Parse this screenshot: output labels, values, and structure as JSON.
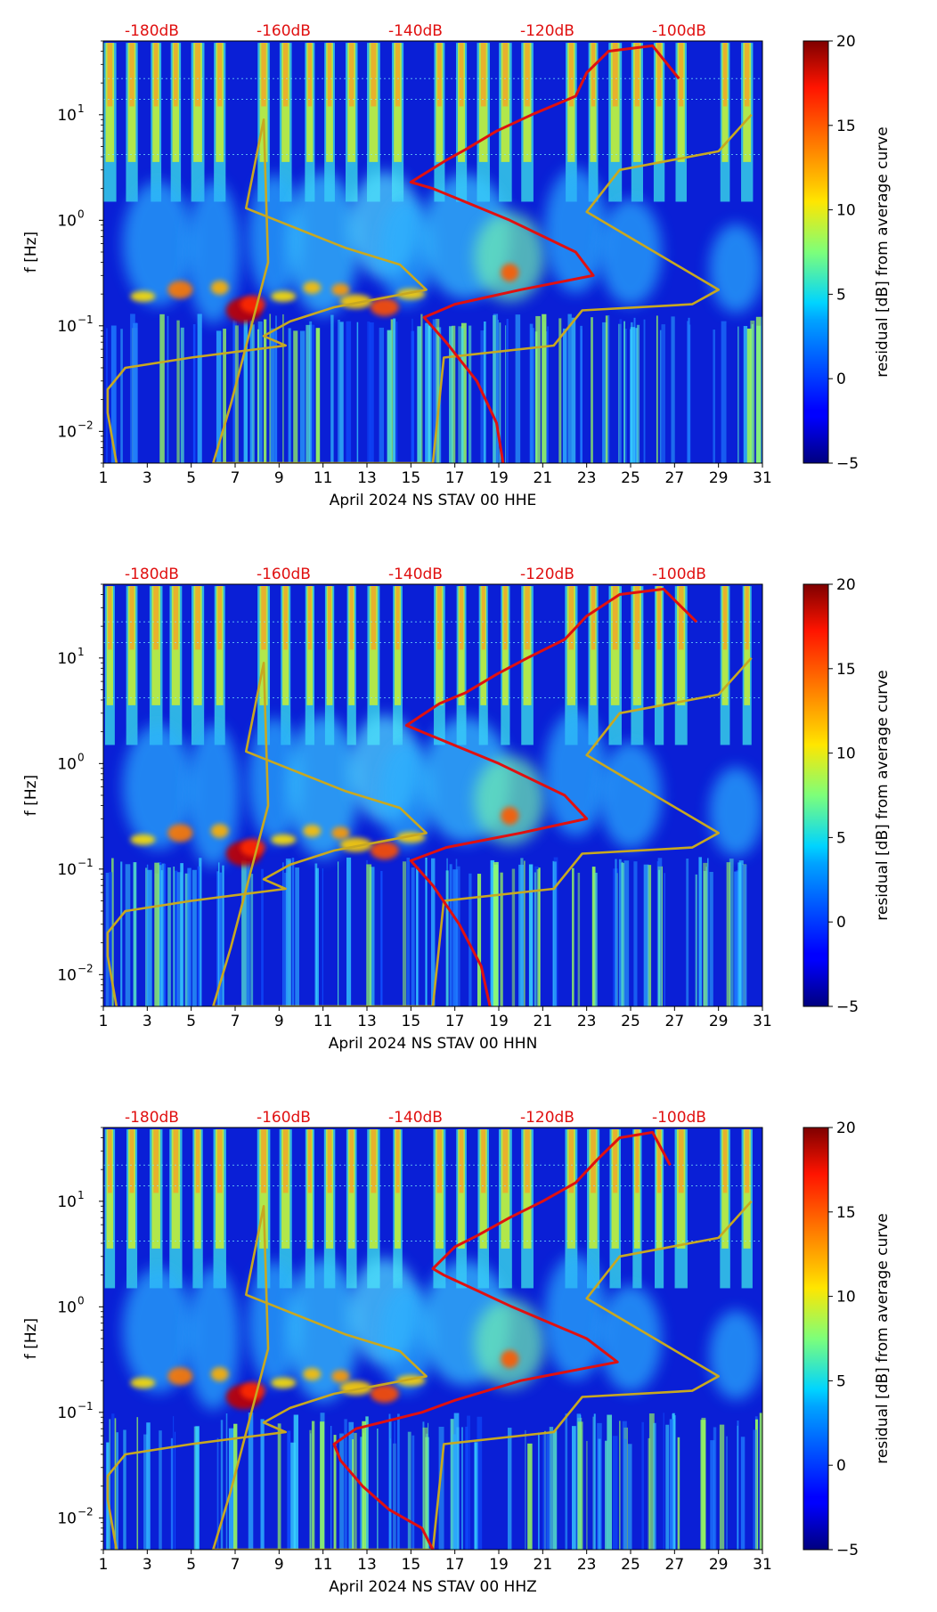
{
  "chart_data": [
    {
      "type": "heatmap",
      "channel": "HHE",
      "xlabel": "April 2024 NS STAV 00 HHE",
      "ylabel": "f [Hz]",
      "x_ticks": [
        "1",
        "3",
        "5",
        "7",
        "9",
        "11",
        "13",
        "15",
        "17",
        "19",
        "21",
        "23",
        "25",
        "27",
        "29",
        "31"
      ],
      "x_range": [
        1,
        31
      ],
      "y_range_hz": [
        0.005,
        50
      ],
      "y_ticks": [
        {
          "base": "10",
          "exp": "1",
          "value": 10
        },
        {
          "base": "10",
          "exp": "0",
          "value": 1
        },
        {
          "base": "10",
          "exp": "−1",
          "value": 0.1
        },
        {
          "base": "10",
          "exp": "−2",
          "value": 0.01
        }
      ],
      "top_db_labels": [
        "-180dB",
        "-160dB",
        "-140dB",
        "-120dB",
        "-100dB"
      ],
      "colorbar": {
        "label": "residual [dB] from average curve",
        "min": -5,
        "max": 20,
        "ticks": [
          "−5",
          "0",
          "5",
          "10",
          "15",
          "20"
        ]
      },
      "red_curve": [
        [
          19.2,
          0.005
        ],
        [
          18.9,
          0.012
        ],
        [
          18.0,
          0.03
        ],
        [
          16.6,
          0.07
        ],
        [
          15.6,
          0.12
        ],
        [
          17.0,
          0.16
        ],
        [
          20.0,
          0.22
        ],
        [
          23.3,
          0.3
        ],
        [
          22.5,
          0.5
        ],
        [
          19.5,
          1.0
        ],
        [
          16.0,
          2.0
        ],
        [
          15.0,
          2.3
        ],
        [
          16.6,
          3.7
        ],
        [
          17.5,
          4.7
        ],
        [
          18.9,
          7.0
        ],
        [
          20.5,
          10
        ],
        [
          22.5,
          15
        ],
        [
          23.0,
          25
        ],
        [
          24.0,
          40
        ],
        [
          26.0,
          45
        ],
        [
          27.2,
          22
        ]
      ],
      "gold_curve": [
        [
          1.6,
          0.005
        ],
        [
          1.2,
          0.015
        ],
        [
          1.2,
          0.025
        ],
        [
          2.0,
          0.04
        ],
        [
          5.0,
          0.05
        ],
        [
          9.3,
          0.065
        ],
        [
          8.3,
          0.08
        ],
        [
          9.5,
          0.11
        ],
        [
          11.5,
          0.15
        ],
        [
          15.7,
          0.22
        ],
        [
          14.5,
          0.38
        ],
        [
          12.0,
          0.55
        ],
        [
          7.5,
          1.3
        ],
        [
          8.3,
          9.0
        ],
        [
          8.5,
          0.4
        ],
        [
          6.8,
          0.018
        ],
        [
          6.0,
          0.005
        ],
        [
          16.0,
          0.005
        ],
        [
          16.5,
          0.05
        ],
        [
          21.5,
          0.065
        ],
        [
          22.8,
          0.14
        ],
        [
          27.8,
          0.16
        ],
        [
          29.0,
          0.22
        ],
        [
          23.0,
          1.2
        ],
        [
          24.5,
          3.0
        ],
        [
          29.0,
          4.5
        ],
        [
          30.5,
          10.0
        ]
      ]
    },
    {
      "type": "heatmap",
      "channel": "HHN",
      "xlabel": "April 2024 NS STAV 00 HHN",
      "ylabel": "f [Hz]",
      "x_ticks": [
        "1",
        "3",
        "5",
        "7",
        "9",
        "11",
        "13",
        "15",
        "17",
        "19",
        "21",
        "23",
        "25",
        "27",
        "29",
        "31"
      ],
      "x_range": [
        1,
        31
      ],
      "y_range_hz": [
        0.005,
        50
      ],
      "y_ticks": [
        {
          "base": "10",
          "exp": "1",
          "value": 10
        },
        {
          "base": "10",
          "exp": "0",
          "value": 1
        },
        {
          "base": "10",
          "exp": "−1",
          "value": 0.1
        },
        {
          "base": "10",
          "exp": "−2",
          "value": 0.01
        }
      ],
      "top_db_labels": [
        "-180dB",
        "-160dB",
        "-140dB",
        "-120dB",
        "-100dB"
      ],
      "colorbar": {
        "label": "residual [dB] from average curve",
        "min": -5,
        "max": 20,
        "ticks": [
          "−5",
          "0",
          "5",
          "10",
          "15",
          "20"
        ]
      },
      "red_curve": [
        [
          18.6,
          0.005
        ],
        [
          18.2,
          0.012
        ],
        [
          17.2,
          0.03
        ],
        [
          16.0,
          0.07
        ],
        [
          15.0,
          0.12
        ],
        [
          16.6,
          0.16
        ],
        [
          20.0,
          0.22
        ],
        [
          23.0,
          0.3
        ],
        [
          22.0,
          0.5
        ],
        [
          19.0,
          1.0
        ],
        [
          15.5,
          2.0
        ],
        [
          14.8,
          2.3
        ],
        [
          16.3,
          3.7
        ],
        [
          17.5,
          4.7
        ],
        [
          18.9,
          7.0
        ],
        [
          20.3,
          10
        ],
        [
          22.0,
          15
        ],
        [
          23.0,
          25
        ],
        [
          24.5,
          40
        ],
        [
          26.5,
          45
        ],
        [
          28.0,
          22
        ]
      ],
      "gold_curve": [
        [
          1.6,
          0.005
        ],
        [
          1.2,
          0.015
        ],
        [
          1.2,
          0.025
        ],
        [
          2.0,
          0.04
        ],
        [
          5.0,
          0.05
        ],
        [
          9.3,
          0.065
        ],
        [
          8.3,
          0.08
        ],
        [
          9.5,
          0.11
        ],
        [
          11.5,
          0.15
        ],
        [
          15.7,
          0.22
        ],
        [
          14.5,
          0.38
        ],
        [
          12.0,
          0.55
        ],
        [
          7.5,
          1.3
        ],
        [
          8.3,
          9.0
        ],
        [
          8.5,
          0.4
        ],
        [
          6.8,
          0.018
        ],
        [
          6.0,
          0.005
        ],
        [
          16.0,
          0.005
        ],
        [
          16.5,
          0.05
        ],
        [
          21.5,
          0.065
        ],
        [
          22.8,
          0.14
        ],
        [
          27.8,
          0.16
        ],
        [
          29.0,
          0.22
        ],
        [
          23.0,
          1.2
        ],
        [
          24.5,
          3.0
        ],
        [
          29.0,
          4.5
        ],
        [
          30.5,
          10.0
        ]
      ]
    },
    {
      "type": "heatmap",
      "channel": "HHZ",
      "xlabel": "April 2024 NS STAV 00 HHZ",
      "ylabel": "f [Hz]",
      "x_ticks": [
        "1",
        "3",
        "5",
        "7",
        "9",
        "11",
        "13",
        "15",
        "17",
        "19",
        "21",
        "23",
        "25",
        "27",
        "29",
        "31"
      ],
      "x_range": [
        1,
        31
      ],
      "y_range_hz": [
        0.005,
        50
      ],
      "y_ticks": [
        {
          "base": "10",
          "exp": "1",
          "value": 10
        },
        {
          "base": "10",
          "exp": "0",
          "value": 1
        },
        {
          "base": "10",
          "exp": "−1",
          "value": 0.1
        },
        {
          "base": "10",
          "exp": "−2",
          "value": 0.01
        }
      ],
      "top_db_labels": [
        "-180dB",
        "-160dB",
        "-140dB",
        "-120dB",
        "-100dB"
      ],
      "colorbar": {
        "label": "residual [dB] from average curve",
        "min": -5,
        "max": 20,
        "ticks": [
          "−5",
          "0",
          "5",
          "10",
          "15",
          "20"
        ]
      },
      "red_curve": [
        [
          16.0,
          0.005
        ],
        [
          15.5,
          0.008
        ],
        [
          14.0,
          0.012
        ],
        [
          12.8,
          0.02
        ],
        [
          11.8,
          0.035
        ],
        [
          11.5,
          0.05
        ],
        [
          12.5,
          0.07
        ],
        [
          15.5,
          0.1
        ],
        [
          17.0,
          0.13
        ],
        [
          20.0,
          0.2
        ],
        [
          24.4,
          0.3
        ],
        [
          23.0,
          0.5
        ],
        [
          19.6,
          1.0
        ],
        [
          16.5,
          2.0
        ],
        [
          16.0,
          2.3
        ],
        [
          17.0,
          3.7
        ],
        [
          18.0,
          4.7
        ],
        [
          19.5,
          7.0
        ],
        [
          21.0,
          10
        ],
        [
          22.5,
          15
        ],
        [
          23.5,
          25
        ],
        [
          24.5,
          40
        ],
        [
          26.0,
          45
        ],
        [
          26.8,
          22
        ]
      ],
      "gold_curve": [
        [
          1.6,
          0.005
        ],
        [
          1.2,
          0.015
        ],
        [
          1.2,
          0.025
        ],
        [
          2.0,
          0.04
        ],
        [
          5.0,
          0.05
        ],
        [
          9.3,
          0.065
        ],
        [
          8.3,
          0.08
        ],
        [
          9.5,
          0.11
        ],
        [
          11.5,
          0.15
        ],
        [
          15.7,
          0.22
        ],
        [
          14.5,
          0.38
        ],
        [
          12.0,
          0.55
        ],
        [
          7.5,
          1.3
        ],
        [
          8.3,
          9.0
        ],
        [
          8.5,
          0.4
        ],
        [
          6.8,
          0.018
        ],
        [
          6.0,
          0.005
        ],
        [
          16.0,
          0.005
        ],
        [
          16.5,
          0.05
        ],
        [
          21.5,
          0.065
        ],
        [
          22.8,
          0.14
        ],
        [
          27.8,
          0.16
        ],
        [
          29.0,
          0.22
        ],
        [
          23.0,
          1.2
        ],
        [
          24.5,
          3.0
        ],
        [
          29.0,
          4.5
        ],
        [
          30.5,
          10.0
        ]
      ]
    }
  ]
}
